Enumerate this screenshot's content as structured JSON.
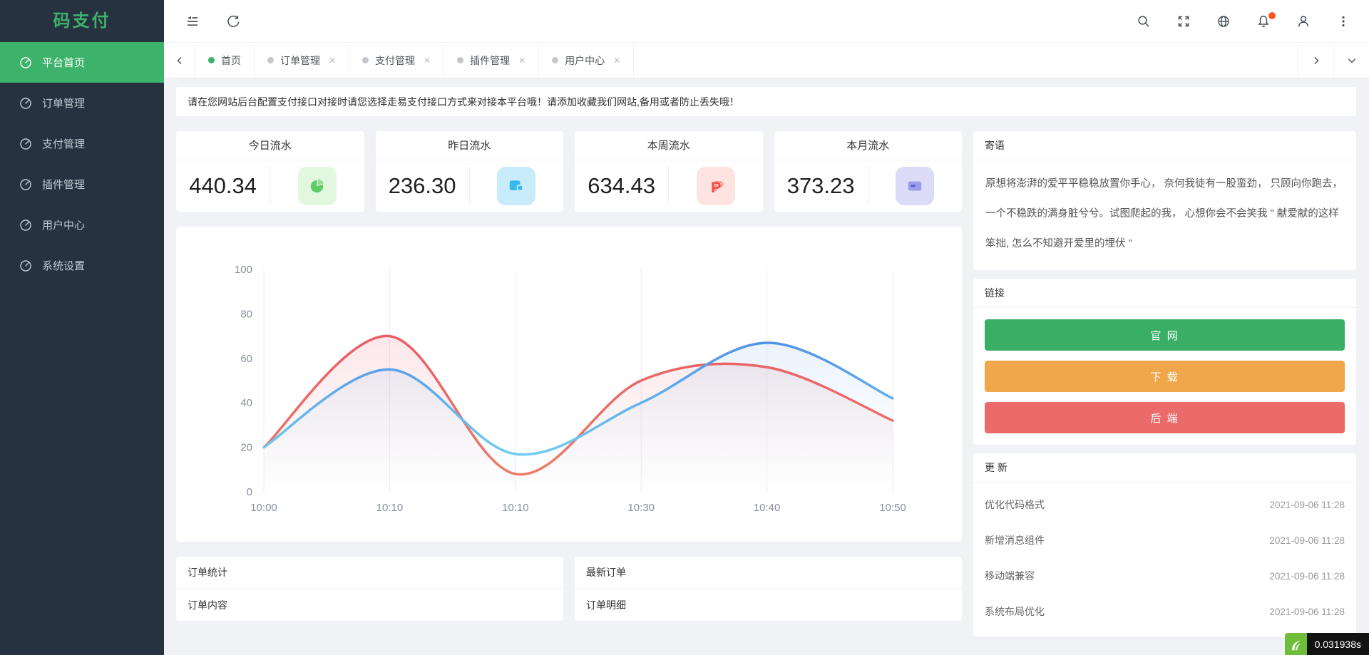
{
  "app": {
    "logo": "码支付"
  },
  "sidebar": {
    "items": [
      {
        "label": "平台首页",
        "active": true
      },
      {
        "label": "订单管理",
        "active": false
      },
      {
        "label": "支付管理",
        "active": false
      },
      {
        "label": "插件管理",
        "active": false
      },
      {
        "label": "用户中心",
        "active": false
      },
      {
        "label": "系统设置",
        "active": false
      }
    ]
  },
  "topbar": {
    "left_icons": [
      "collapse-menu-icon",
      "refresh-icon"
    ],
    "right_icons": [
      "search-icon",
      "fullscreen-icon",
      "globe-icon",
      "bell-icon",
      "user-icon",
      "more-vertical-icon"
    ],
    "bell_badge_color": "#ff5722"
  },
  "tabs": {
    "items": [
      {
        "label": "首页",
        "active": true,
        "closable": false
      },
      {
        "label": "订单管理",
        "active": false,
        "closable": true
      },
      {
        "label": "支付管理",
        "active": false,
        "closable": true
      },
      {
        "label": "插件管理",
        "active": false,
        "closable": true
      },
      {
        "label": "用户中心",
        "active": false,
        "closable": true
      }
    ],
    "close_glyph": "✕"
  },
  "notice": {
    "text": "请在您网站后台配置支付接口对接时请您选择走易支付接口方式来对接本平台哦！请添加收藏我们网站,备用或者防止丢失哦！"
  },
  "stats": {
    "cards": [
      {
        "title": "今日流水",
        "value": "440.34",
        "icon": "pie-chart-icon",
        "accent": "#5bcd68",
        "bg": "#e2f6e0"
      },
      {
        "title": "昨日流水",
        "value": "236.30",
        "icon": "wallet-icon",
        "accent": "#35b9ec",
        "bg": "#c9ecfb"
      },
      {
        "title": "本周流水",
        "value": "634.43",
        "icon": "paypal-icon",
        "accent": "#ee4b45",
        "bg": "#fde4e1"
      },
      {
        "title": "本月流水",
        "value": "373.23",
        "icon": "credit-card-icon",
        "accent": "#8c8ce4",
        "bg": "#dcdcf8"
      }
    ]
  },
  "chart_data": {
    "type": "area",
    "title": "",
    "xlabel": "",
    "ylabel": "",
    "categories": [
      "10:00",
      "10:10",
      "10:10",
      "10:30",
      "10:40",
      "10:50"
    ],
    "series": [
      {
        "name": "red_series",
        "values": [
          20,
          70,
          8,
          50,
          56,
          32
        ],
        "line_top": "#e44f68",
        "line_bottom": "#ee8066",
        "fill_top": "rgba(232,88,108,0.20)",
        "fill_bottom": "rgba(232,88,108,0)"
      },
      {
        "name": "blue_series",
        "values": [
          20,
          55,
          17,
          40,
          67,
          42
        ],
        "line_top": "#3a6fe0",
        "line_bottom": "#7eddf4",
        "fill_top": "rgba(92,130,228,0.20)",
        "fill_bottom": "rgba(126,221,244,0)"
      }
    ],
    "ylim": [
      0,
      100
    ],
    "yticks": [
      0,
      20,
      40,
      60,
      80,
      100
    ],
    "smooth": true,
    "legend": "none",
    "grid": "vertical-only",
    "grid_color": "#ebedf0",
    "axis_label_color": "#87909c"
  },
  "quote_panel": {
    "title": "寄语",
    "text": "原想将澎湃的爱平平稳稳放置你手心， 奈何我徒有一股蛮劲， 只顾向你跑去， 一个不稳跌的满身脏兮兮。试图爬起的我， 心想你会不会笑我 \" 献爱献的这样笨拙, 怎么不知避开爱里的埋伏 \""
  },
  "links_panel": {
    "title": "链接",
    "buttons": [
      {
        "label": "官 网",
        "color": "#39ae64"
      },
      {
        "label": "下 载",
        "color": "#f0a64a"
      },
      {
        "label": "后 端",
        "color": "#eb6a6a"
      }
    ]
  },
  "updates_panel": {
    "title": "更 新",
    "items": [
      {
        "label": "优化代码格式",
        "date": "2021-09-06 11:28"
      },
      {
        "label": "新增消息组件",
        "date": "2021-09-06 11:28"
      },
      {
        "label": "移动端兼容",
        "date": "2021-09-06 11:28"
      },
      {
        "label": "系统布局优化",
        "date": "2021-09-06 11:28"
      }
    ]
  },
  "order_cards": {
    "left": {
      "title": "订单统计",
      "body": "订单内容"
    },
    "right": {
      "title": "最新订单",
      "body": "订单明细"
    }
  },
  "debug": {
    "time": "0.031938s"
  }
}
